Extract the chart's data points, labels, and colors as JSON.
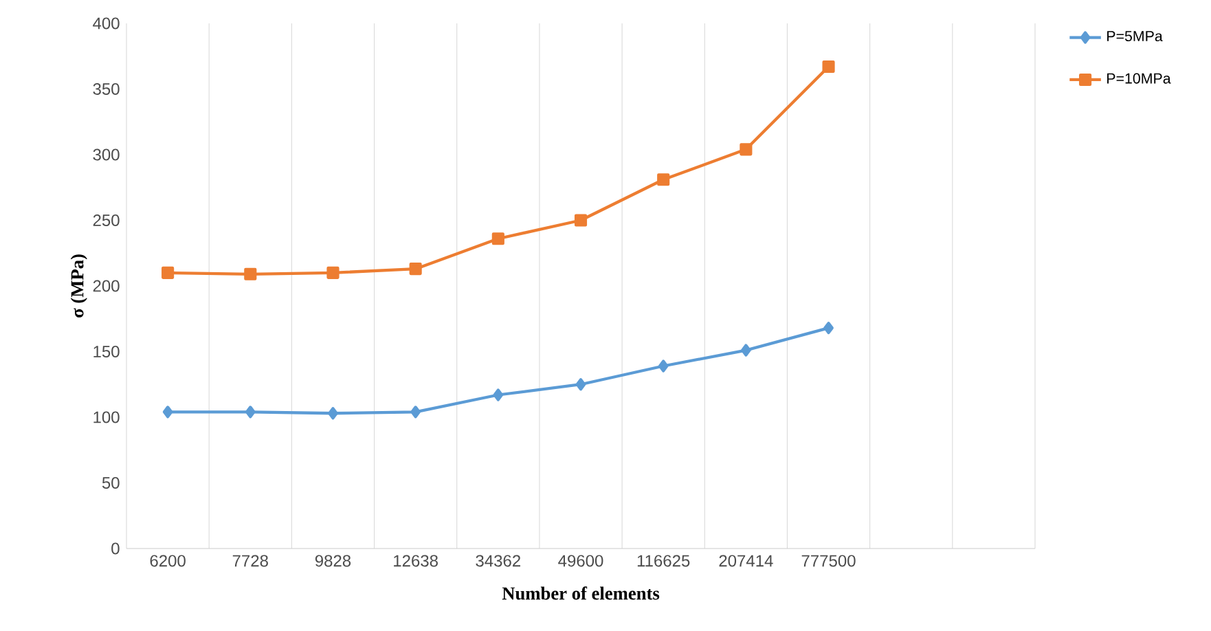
{
  "chart_data": {
    "type": "line",
    "xlabel": "Number of elements",
    "ylabel": "σ (MPa)",
    "categories": [
      "6200",
      "7728",
      "9828",
      "12638",
      "34362",
      "49600",
      "116625",
      "207414",
      "777500",
      null,
      null
    ],
    "ylim": [
      0,
      400
    ],
    "yticks": [
      0,
      50,
      100,
      150,
      200,
      250,
      300,
      350,
      400
    ],
    "grid": "x",
    "legend": "top right",
    "series": [
      {
        "name": "P=5MPa",
        "color": "#5b9bd5",
        "marker": "diamond",
        "values": [
          104,
          104,
          103,
          104,
          117,
          125,
          139,
          151,
          168,
          null,
          null
        ]
      },
      {
        "name": "P=10MPa",
        "color": "#ed7d31",
        "marker": "square",
        "values": [
          210,
          209,
          210,
          213,
          236,
          250,
          281,
          304,
          367,
          null,
          null
        ]
      }
    ]
  }
}
